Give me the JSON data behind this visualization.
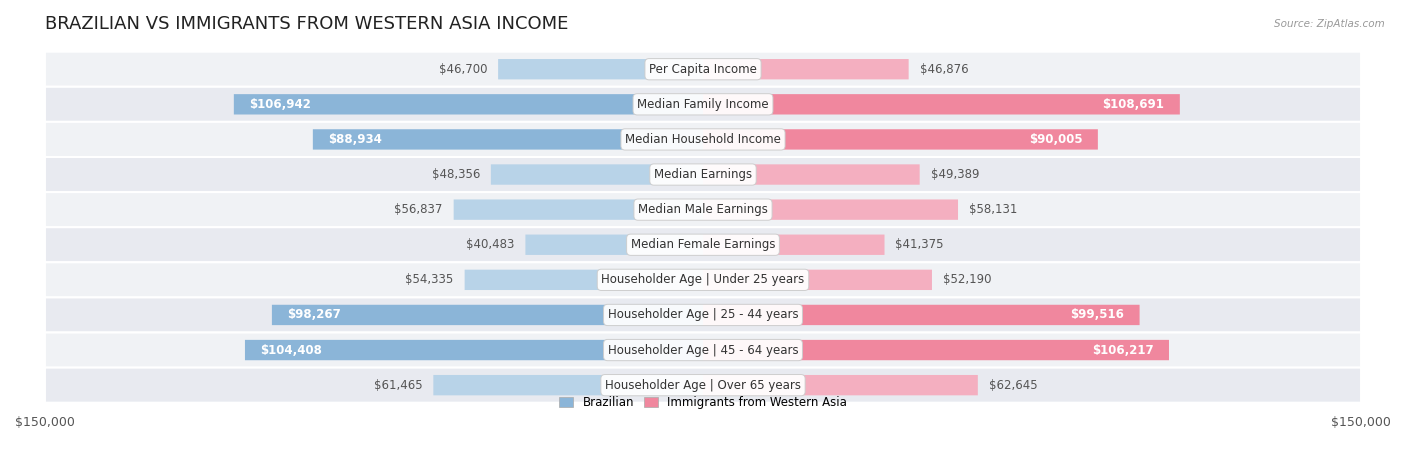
{
  "title": "BRAZILIAN VS IMMIGRANTS FROM WESTERN ASIA INCOME",
  "source": "Source: ZipAtlas.com",
  "categories": [
    "Per Capita Income",
    "Median Family Income",
    "Median Household Income",
    "Median Earnings",
    "Median Male Earnings",
    "Median Female Earnings",
    "Householder Age | Under 25 years",
    "Householder Age | 25 - 44 years",
    "Householder Age | 45 - 64 years",
    "Householder Age | Over 65 years"
  ],
  "brazilian_values": [
    46700,
    106942,
    88934,
    48356,
    56837,
    40483,
    54335,
    98267,
    104408,
    61465
  ],
  "immigrant_values": [
    46876,
    108691,
    90005,
    49389,
    58131,
    41375,
    52190,
    99516,
    106217,
    62645
  ],
  "brazilian_labels": [
    "$46,700",
    "$106,942",
    "$88,934",
    "$48,356",
    "$56,837",
    "$40,483",
    "$54,335",
    "$98,267",
    "$104,408",
    "$61,465"
  ],
  "immigrant_labels": [
    "$46,876",
    "$108,691",
    "$90,005",
    "$49,389",
    "$58,131",
    "$41,375",
    "$52,190",
    "$99,516",
    "$106,217",
    "$62,645"
  ],
  "brazilian_color": "#8bb5d8",
  "immigrant_color": "#f0879e",
  "brazilian_color_light": "#b8d3e8",
  "immigrant_color_light": "#f4afc0",
  "max_value": 150000,
  "label_color_inside": "#ffffff",
  "label_color_outside": "#555555",
  "bar_height": 0.58,
  "row_colors": [
    "#f0f2f5",
    "#e8eaf0"
  ],
  "legend_label_brazilian": "Brazilian",
  "legend_label_immigrant": "Immigrants from Western Asia",
  "title_fontsize": 13,
  "axis_label_fontsize": 9,
  "bar_label_fontsize": 8.5,
  "category_fontsize": 8.5,
  "inside_threshold": 65000
}
